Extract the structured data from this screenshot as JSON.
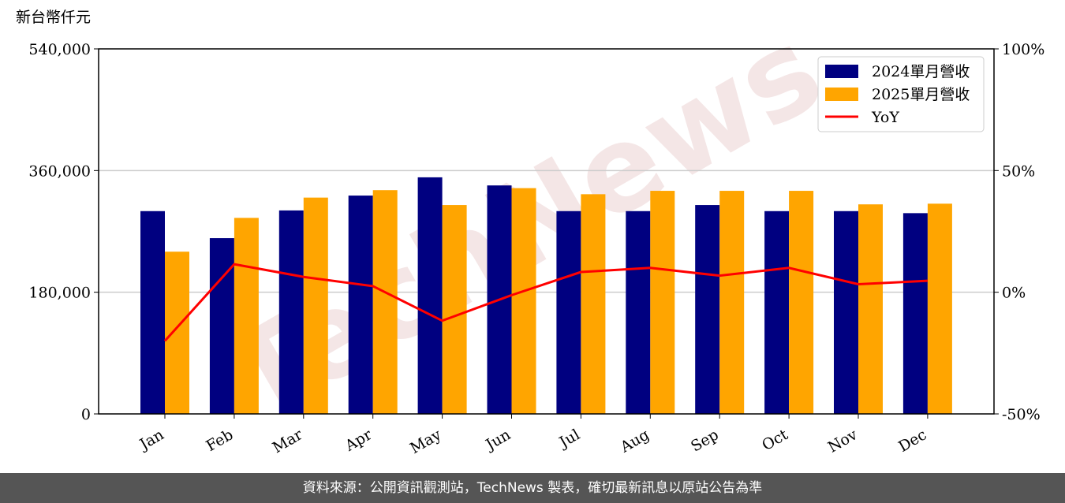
{
  "chart_data": {
    "type": "bar_line",
    "y_label": "新台幣仟元",
    "watermark": "TechNews",
    "categories": [
      "Jan",
      "Feb",
      "Mar",
      "Apr",
      "May",
      "Jun",
      "Jul",
      "Aug",
      "Sep",
      "Oct",
      "Nov",
      "Dec"
    ],
    "series": [
      {
        "name": "2024單月營收",
        "color": "#000080",
        "type": "bar",
        "values": [
          300000,
          260000,
          301000,
          323000,
          350000,
          338000,
          300000,
          300000,
          309000,
          300000,
          300000,
          297000
        ]
      },
      {
        "name": "2025單月營收",
        "color": "#ffa500",
        "type": "bar",
        "values": [
          240000,
          290000,
          320000,
          331000,
          309000,
          334000,
          325000,
          330000,
          330000,
          330000,
          310000,
          311000
        ]
      },
      {
        "name": "YoY",
        "color": "#ff0000",
        "type": "line",
        "axis": "y2",
        "values": [
          -20,
          11.5,
          6.3,
          2.5,
          -11.7,
          -1.2,
          8.3,
          10,
          6.8,
          10,
          3.3,
          4.7
        ]
      }
    ],
    "ylim": [
      0,
      540000
    ],
    "yticks": [
      0,
      {
        "value": 180000,
        "label": "180,000"
      },
      {
        "value": 360000,
        "label": "360,000"
      },
      {
        "value": 540000,
        "label": "540,000"
      }
    ],
    "y2lim": [
      -50,
      100
    ],
    "y2ticks": [
      {
        "value": -50,
        "label": "-50%"
      },
      {
        "value": 0,
        "label": "0%"
      },
      {
        "value": 50,
        "label": "50%"
      },
      {
        "value": 100,
        "label": "100%"
      }
    ],
    "grid": true,
    "legend": "upper right"
  },
  "footer": "資料來源：公開資訊觀測站，TechNews 製表，確切最新訊息以原站公告為準"
}
